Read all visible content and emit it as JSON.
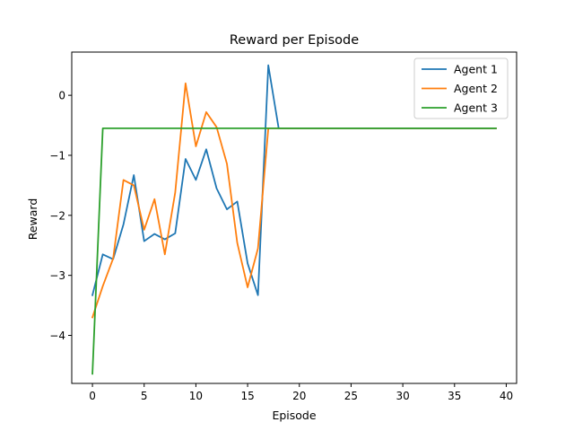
{
  "chart_data": {
    "type": "line",
    "title": "Reward per Episode",
    "xlabel": "Episode",
    "ylabel": "Reward",
    "xlim": [
      -2,
      41
    ],
    "ylim": [
      -4.8,
      0.72
    ],
    "xticks": [
      0,
      5,
      10,
      15,
      20,
      25,
      30,
      35,
      40
    ],
    "xtick_labels": [
      "0",
      "5",
      "10",
      "15",
      "20",
      "25",
      "30",
      "35",
      "40"
    ],
    "yticks": [
      0,
      -1,
      -2,
      -3,
      -4
    ],
    "ytick_labels": [
      "0",
      "−1",
      "−2",
      "−3",
      "−4"
    ],
    "grid": false,
    "legend_position": "top-right",
    "series": [
      {
        "name": "Agent 1",
        "color": "#1f77b4",
        "x": [
          0,
          1,
          2,
          3,
          4,
          5,
          6,
          7,
          8,
          9,
          10,
          11,
          12,
          13,
          14,
          15,
          16,
          17,
          18,
          19,
          20,
          21,
          22,
          23,
          24,
          25,
          26,
          27,
          28,
          29,
          30,
          31,
          32,
          33,
          34,
          35,
          36,
          37,
          38,
          39
        ],
        "y": [
          -3.33,
          -2.65,
          -2.73,
          -2.15,
          -1.33,
          -2.43,
          -2.31,
          -2.4,
          -2.3,
          -1.06,
          -1.41,
          -0.9,
          -1.55,
          -1.9,
          -1.77,
          -2.8,
          -3.33,
          0.5,
          -0.55,
          -0.55,
          -0.55,
          -0.55,
          -0.55,
          -0.55,
          -0.55,
          -0.55,
          -0.55,
          -0.55,
          -0.55,
          -0.55,
          -0.55,
          -0.55,
          -0.55,
          -0.55,
          -0.55,
          -0.55,
          -0.55,
          -0.55,
          -0.55,
          -0.55
        ]
      },
      {
        "name": "Agent 2",
        "color": "#ff7f0e",
        "x": [
          0,
          1,
          2,
          3,
          4,
          5,
          6,
          7,
          8,
          9,
          10,
          11,
          12,
          13,
          14,
          15,
          16,
          17,
          18,
          19,
          20,
          21,
          22,
          23,
          24,
          25,
          26,
          27,
          28,
          29,
          30,
          31,
          32,
          33,
          34,
          35,
          36,
          37,
          38,
          39
        ],
        "y": [
          -3.7,
          -3.18,
          -2.72,
          -1.41,
          -1.5,
          -2.24,
          -1.73,
          -2.65,
          -1.62,
          0.2,
          -0.85,
          -0.28,
          -0.53,
          -1.14,
          -2.46,
          -3.2,
          -2.55,
          -0.55,
          -0.55,
          -0.55,
          -0.55,
          -0.55,
          -0.55,
          -0.55,
          -0.55,
          -0.55,
          -0.55,
          -0.55,
          -0.55,
          -0.55,
          -0.55,
          -0.55,
          -0.55,
          -0.55,
          -0.55,
          -0.55,
          -0.55,
          -0.55,
          -0.55,
          -0.55
        ]
      },
      {
        "name": "Agent 3",
        "color": "#2ca02c",
        "x": [
          0,
          1,
          2,
          3,
          4,
          5,
          6,
          7,
          8,
          9,
          10,
          11,
          12,
          13,
          14,
          15,
          16,
          17,
          18,
          19,
          20,
          21,
          22,
          23,
          24,
          25,
          26,
          27,
          28,
          29,
          30,
          31,
          32,
          33,
          34,
          35,
          36,
          37,
          38,
          39
        ],
        "y": [
          -4.64,
          -0.55,
          -0.55,
          -0.55,
          -0.55,
          -0.55,
          -0.55,
          -0.55,
          -0.55,
          -0.55,
          -0.55,
          -0.55,
          -0.55,
          -0.55,
          -0.55,
          -0.55,
          -0.55,
          -0.55,
          -0.55,
          -0.55,
          -0.55,
          -0.55,
          -0.55,
          -0.55,
          -0.55,
          -0.55,
          -0.55,
          -0.55,
          -0.55,
          -0.55,
          -0.55,
          -0.55,
          -0.55,
          -0.55,
          -0.55,
          -0.55,
          -0.55,
          -0.55,
          -0.55,
          -0.55
        ]
      }
    ]
  }
}
